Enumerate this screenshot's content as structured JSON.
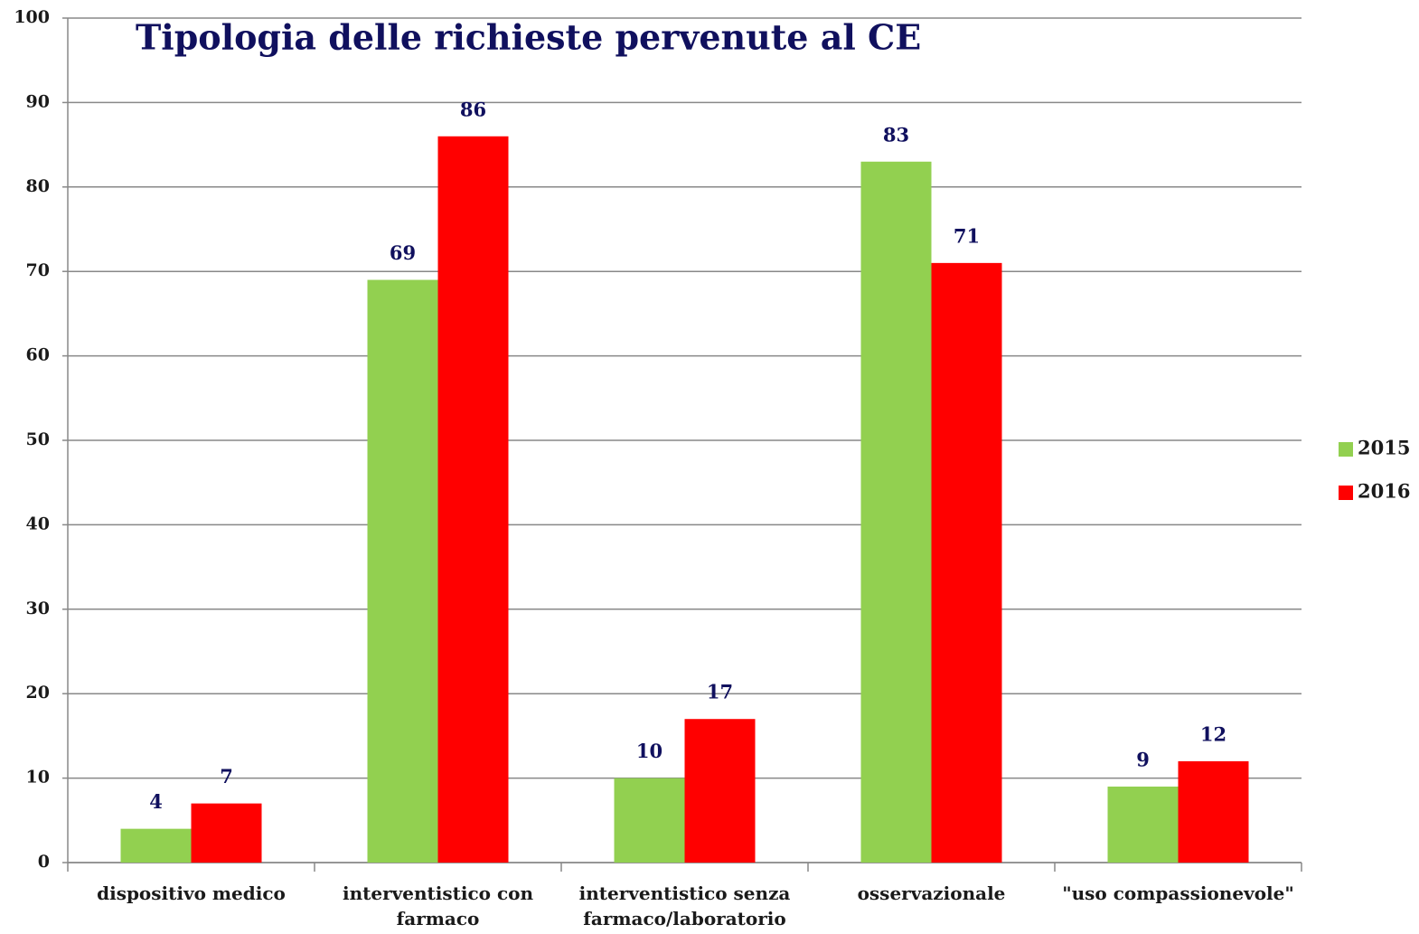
{
  "chart_data": {
    "type": "bar",
    "title": "Tipologia delle richieste pervenute al CE",
    "categories": [
      "dispositivo medico",
      "interventistico con farmaco",
      "interventistico senza farmaco/laboratorio",
      "osservazionale",
      "\"uso compassionevole\""
    ],
    "series": [
      {
        "name": "2015",
        "color": "#92d050",
        "values": [
          4,
          69,
          10,
          83,
          9
        ]
      },
      {
        "name": "2016",
        "color": "#ff0000",
        "values": [
          7,
          86,
          17,
          71,
          12
        ]
      }
    ],
    "ylim": [
      0,
      100
    ],
    "yticks": [
      0,
      10,
      20,
      30,
      40,
      50,
      60,
      70,
      80,
      90,
      100
    ],
    "grid": true,
    "legend": "right"
  }
}
